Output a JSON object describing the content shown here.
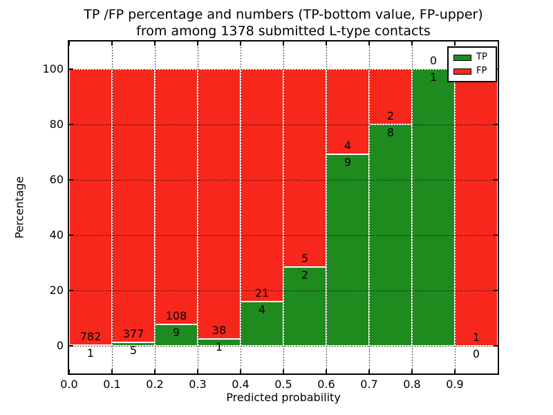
{
  "chart_data": {
    "type": "bar",
    "stacking": "percent",
    "title_line1": "TP /FP percentage and numbers (TP-bottom value, FP-upper)",
    "title_line2": "from among 1378 submitted L-type contacts",
    "total_contacts": 1378,
    "xlabel": "Predicted probability",
    "ylabel": "Percentage",
    "xlim": [
      0.0,
      1.0
    ],
    "ylim": [
      -10,
      110
    ],
    "bin_width": 0.1,
    "xtick_labels": [
      "0.0",
      "0.1",
      "0.2",
      "0.3",
      "0.4",
      "0.5",
      "0.6",
      "0.7",
      "0.8",
      "0.9"
    ],
    "ytick_values": [
      0,
      20,
      40,
      60,
      80,
      100
    ],
    "grid_style": "dotted",
    "colors": {
      "tp": "#1f8b1f",
      "fp": "#f8271b",
      "bar_edge": "#ffffff",
      "text": "#000000",
      "background": "#ffffff"
    },
    "legend": {
      "position": "upper right",
      "entries": [
        {
          "label": "TP",
          "series": "tp"
        },
        {
          "label": "FP",
          "series": "fp"
        }
      ]
    },
    "bars": [
      {
        "bin": "0.0-0.1",
        "tp": 1,
        "fp": 782
      },
      {
        "bin": "0.1-0.2",
        "tp": 5,
        "fp": 377
      },
      {
        "bin": "0.2-0.3",
        "tp": 9,
        "fp": 108
      },
      {
        "bin": "0.3-0.4",
        "tp": 1,
        "fp": 38
      },
      {
        "bin": "0.4-0.5",
        "tp": 4,
        "fp": 21
      },
      {
        "bin": "0.5-0.6",
        "tp": 2,
        "fp": 5
      },
      {
        "bin": "0.6-0.7",
        "tp": 9,
        "fp": 4
      },
      {
        "bin": "0.7-0.8",
        "tp": 8,
        "fp": 2
      },
      {
        "bin": "0.8-0.9",
        "tp": 1,
        "fp": 0
      },
      {
        "bin": "0.9-1.0",
        "tp": 0,
        "fp": 1
      }
    ]
  }
}
